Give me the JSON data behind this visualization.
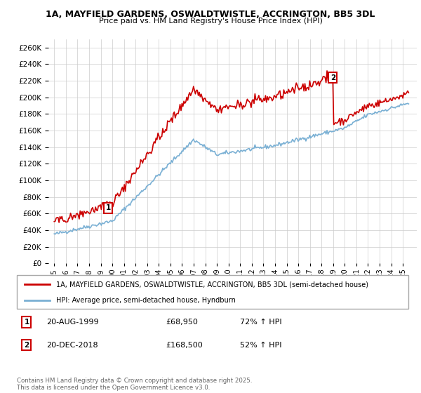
{
  "title": "1A, MAYFIELD GARDENS, OSWALDTWISTLE, ACCRINGTON, BB5 3DL",
  "subtitle": "Price paid vs. HM Land Registry's House Price Index (HPI)",
  "ylim": [
    0,
    270000
  ],
  "yticks": [
    0,
    20000,
    40000,
    60000,
    80000,
    100000,
    120000,
    140000,
    160000,
    180000,
    200000,
    220000,
    240000,
    260000
  ],
  "property_color": "#cc0000",
  "hpi_color": "#7ab0d4",
  "legend_property": "1A, MAYFIELD GARDENS, OSWALDTWISTLE, ACCRINGTON, BB5 3DL (semi-detached house)",
  "legend_hpi": "HPI: Average price, semi-detached house, Hyndburn",
  "footnote": "Contains HM Land Registry data © Crown copyright and database right 2025.\nThis data is licensed under the Open Government Licence v3.0.",
  "background_color": "#ffffff",
  "grid_color": "#cccccc",
  "sale1_year": 1999.6,
  "sale1_price": 68950,
  "sale1_label": "1",
  "sale1_annotation": "20-AUG-1999",
  "sale1_extra": "£68,950",
  "sale1_hpi": "72% ↑ HPI",
  "sale2_year": 2018.95,
  "sale2_price": 168500,
  "sale2_label": "2",
  "sale2_annotation": "20-DEC-2018",
  "sale2_extra": "£168,500",
  "sale2_hpi": "52% ↑ HPI"
}
